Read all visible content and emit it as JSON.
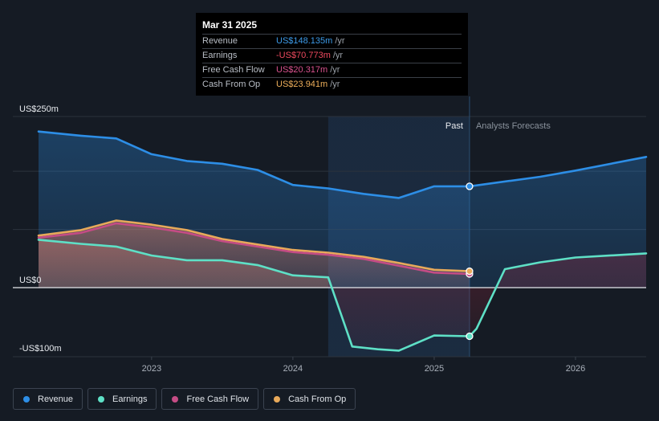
{
  "tooltip": {
    "date": "Mar 31 2025",
    "rows": [
      {
        "label": "Revenue",
        "value": "US$148.135m",
        "unit": "/yr",
        "color": "#3d9be9"
      },
      {
        "label": "Earnings",
        "value": "-US$70.773m",
        "unit": "/yr",
        "color": "#ef4a5f"
      },
      {
        "label": "Free Cash Flow",
        "value": "US$20.317m",
        "unit": "/yr",
        "color": "#d9528e"
      },
      {
        "label": "Cash From Op",
        "value": "US$23.941m",
        "unit": "/yr",
        "color": "#eeaf5b"
      }
    ]
  },
  "labels": {
    "past": "Past",
    "forecast": "Analysts Forecasts"
  },
  "legend": [
    {
      "label": "Revenue",
      "color": "#2d8ee6"
    },
    {
      "label": "Earnings",
      "color": "#5ee0c6"
    },
    {
      "label": "Free Cash Flow",
      "color": "#c54c85"
    },
    {
      "label": "Cash From Op",
      "color": "#e8a95a"
    }
  ],
  "chart_data": {
    "type": "line",
    "ylim": [
      -100,
      250
    ],
    "y_ticks": [
      {
        "value": 250,
        "label": "US$250m"
      },
      {
        "value": 0,
        "label": "US$0"
      },
      {
        "value": -100,
        "label": "-US$100m"
      }
    ],
    "xlim": [
      2022.2,
      2026.5
    ],
    "x_ticks": [
      {
        "value": 2023,
        "label": "2023"
      },
      {
        "value": 2024,
        "label": "2024"
      },
      {
        "value": 2025,
        "label": "2025"
      },
      {
        "value": 2026,
        "label": "2026"
      }
    ],
    "highlight_range": [
      2024.25,
      2025.25
    ],
    "past_end": 2025.25,
    "series": [
      {
        "name": "Revenue",
        "color": "#2d8ee6",
        "past": [
          [
            2022.2,
            228
          ],
          [
            2022.5,
            222
          ],
          [
            2022.75,
            218
          ],
          [
            2023.0,
            195
          ],
          [
            2023.25,
            185
          ],
          [
            2023.5,
            181
          ],
          [
            2023.75,
            172
          ],
          [
            2024.0,
            150
          ],
          [
            2024.25,
            145
          ],
          [
            2024.5,
            137
          ],
          [
            2024.75,
            131
          ],
          [
            2025.0,
            148
          ],
          [
            2025.25,
            148
          ]
        ],
        "forecast": [
          [
            2025.25,
            148
          ],
          [
            2025.75,
            162
          ],
          [
            2026.0,
            171
          ],
          [
            2026.5,
            191
          ]
        ]
      },
      {
        "name": "Earnings",
        "color": "#5ee0c6",
        "past": [
          [
            2022.2,
            70
          ],
          [
            2022.5,
            64
          ],
          [
            2022.75,
            60
          ],
          [
            2023.0,
            47
          ],
          [
            2023.25,
            40
          ],
          [
            2023.5,
            40
          ],
          [
            2023.75,
            33
          ],
          [
            2024.0,
            18
          ],
          [
            2024.25,
            15
          ],
          [
            2024.42,
            -86
          ],
          [
            2024.6,
            -90
          ],
          [
            2024.75,
            -92
          ],
          [
            2025.0,
            -70
          ],
          [
            2025.25,
            -71
          ]
        ],
        "forecast": [
          [
            2025.25,
            -71
          ],
          [
            2025.3,
            -60
          ],
          [
            2025.5,
            27
          ],
          [
            2025.75,
            37
          ],
          [
            2026.0,
            44
          ],
          [
            2026.5,
            50
          ]
        ]
      },
      {
        "name": "Free Cash Flow",
        "color": "#c54c85",
        "past": [
          [
            2022.2,
            73
          ],
          [
            2022.5,
            80
          ],
          [
            2022.75,
            94
          ],
          [
            2023.0,
            88
          ],
          [
            2023.25,
            80
          ],
          [
            2023.5,
            68
          ],
          [
            2023.75,
            60
          ],
          [
            2024.0,
            52
          ],
          [
            2024.25,
            48
          ],
          [
            2024.5,
            42
          ],
          [
            2024.75,
            32
          ],
          [
            2025.0,
            22
          ],
          [
            2025.25,
            20
          ]
        ],
        "forecast": []
      },
      {
        "name": "Cash From Op",
        "color": "#e8a95a",
        "past": [
          [
            2022.2,
            76
          ],
          [
            2022.5,
            84
          ],
          [
            2022.75,
            98
          ],
          [
            2023.0,
            92
          ],
          [
            2023.25,
            84
          ],
          [
            2023.5,
            71
          ],
          [
            2023.75,
            63
          ],
          [
            2024.0,
            55
          ],
          [
            2024.25,
            51
          ],
          [
            2024.5,
            45
          ],
          [
            2024.75,
            36
          ],
          [
            2025.0,
            26
          ],
          [
            2025.25,
            24
          ]
        ],
        "forecast": []
      }
    ]
  }
}
